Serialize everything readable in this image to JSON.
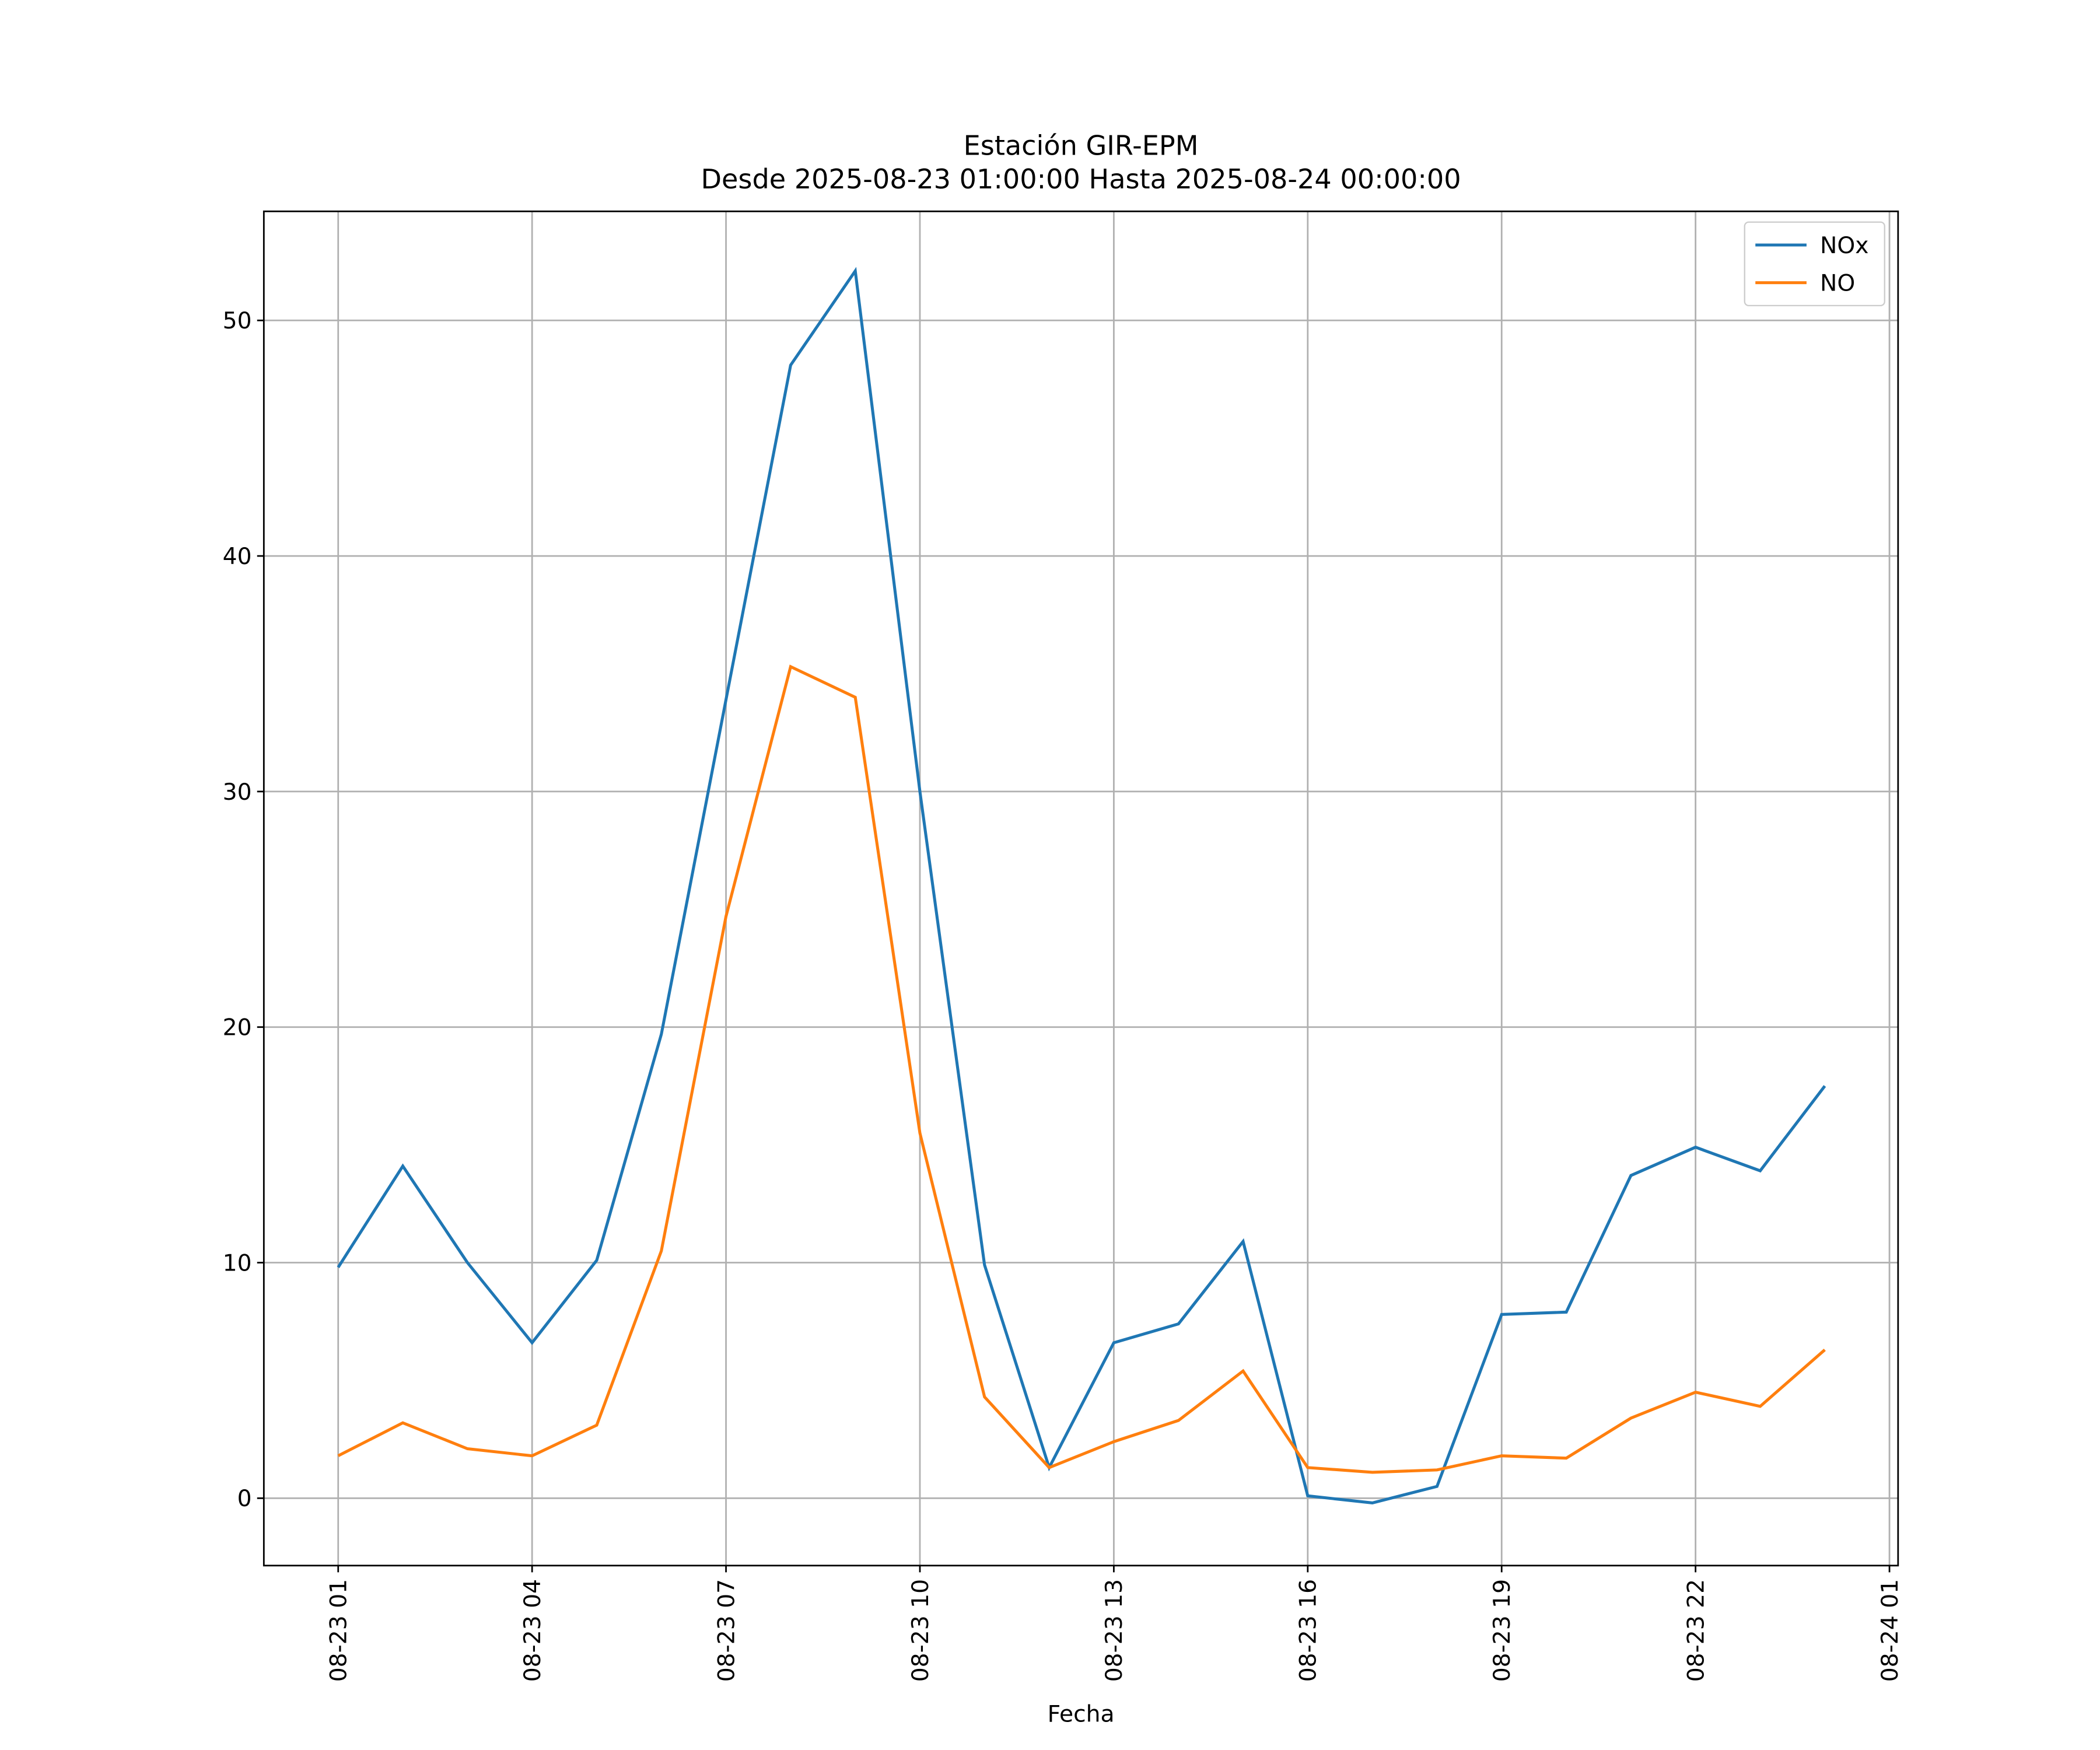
{
  "chart_data": {
    "type": "line",
    "title": "Estación GIR-EPM",
    "subtitle": "Desde 2025-08-23 01:00:00 Hasta 2025-08-24 00:00:00",
    "x_label": "Fecha",
    "x": [
      "08-23 01",
      "08-23 02",
      "08-23 03",
      "08-23 04",
      "08-23 05",
      "08-23 06",
      "08-23 07",
      "08-23 08",
      "08-23 09",
      "08-23 10",
      "08-23 11",
      "08-23 12",
      "08-23 13",
      "08-23 14",
      "08-23 15",
      "08-23 16",
      "08-23 17",
      "08-23 18",
      "08-23 19",
      "08-23 20",
      "08-23 21",
      "08-23 22",
      "08-23 23",
      "08-24 00"
    ],
    "series": [
      {
        "name": "NOx",
        "color": "#1f77b4",
        "values": [
          9.8,
          14.1,
          10.0,
          6.6,
          10.1,
          19.7,
          33.9,
          48.1,
          52.1,
          30.0,
          9.9,
          1.3,
          6.6,
          7.4,
          10.9,
          0.1,
          -0.2,
          0.5,
          7.8,
          7.9,
          13.7,
          14.9,
          13.9,
          17.5
        ]
      },
      {
        "name": "NO",
        "color": "#ff7f0e",
        "values": [
          1.8,
          3.2,
          2.1,
          1.8,
          3.1,
          10.5,
          24.7,
          35.3,
          34.0,
          15.5,
          4.3,
          1.3,
          2.4,
          3.3,
          5.4,
          1.3,
          1.1,
          1.2,
          1.8,
          1.7,
          3.4,
          4.5,
          3.9,
          6.3
        ]
      }
    ],
    "xlim": [
      "08-22 23:51",
      "08-24 01:08"
    ],
    "xticks": [
      "08-23 01",
      "08-23 04",
      "08-23 07",
      "08-23 10",
      "08-23 13",
      "08-23 16",
      "08-23 19",
      "08-23 22",
      "08-24 01"
    ],
    "ylim": [
      -2.86,
      54.63
    ],
    "yticks": [
      0,
      10,
      20,
      30,
      40,
      50
    ],
    "grid": true,
    "legend": "upper right"
  }
}
